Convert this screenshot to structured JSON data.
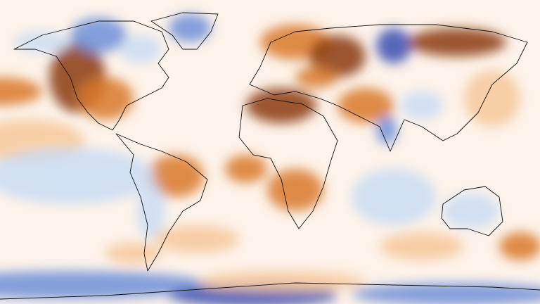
{
  "map": {
    "type": "global temperature anomaly map",
    "palette": {
      "strong_warm": "#8a3a0c",
      "warm": "#d9782a",
      "mild_warm": "#f6c89a",
      "neutral": "#ffffff",
      "mild_cool": "#c9dcf3",
      "cool": "#6f8fd8",
      "strong_cool": "#3b4fb0",
      "extreme_cool": "#c9a6f0"
    }
  }
}
